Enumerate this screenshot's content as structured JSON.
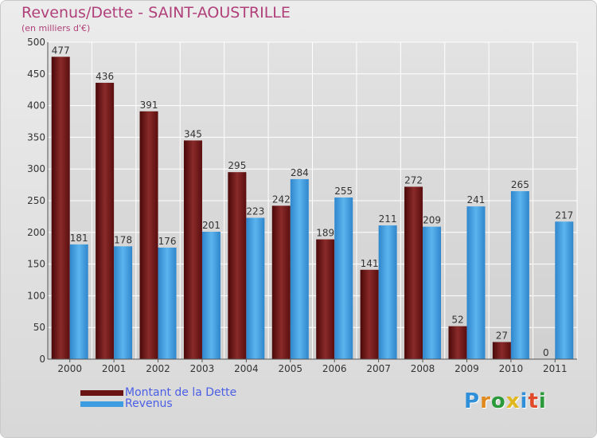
{
  "header": {
    "title": "Revenus/Dette - SAINT-AOUSTRILLE",
    "subtitle": "(en milliers d'€)"
  },
  "legend": [
    {
      "label": "Montant de la Dette",
      "color": "#6b1414"
    },
    {
      "label": "Revenus",
      "color": "#3d9de0"
    }
  ],
  "logo": {
    "letters": [
      {
        "ch": "P",
        "color": "#2f8fd8"
      },
      {
        "ch": "r",
        "color": "#e08a1e"
      },
      {
        "ch": "o",
        "color": "#2a9a3a"
      },
      {
        "ch": "x",
        "color": "#e0b81e"
      },
      {
        "ch": "i",
        "color": "#2f8fd8"
      },
      {
        "ch": "t",
        "color": "#e04a2a"
      },
      {
        "ch": "i",
        "color": "#2a9a3a"
      }
    ]
  },
  "chart_data": {
    "type": "bar",
    "title": "Revenus/Dette - SAINT-AOUSTRILLE",
    "subtitle": "(en milliers d'€)",
    "categories": [
      "2000",
      "2001",
      "2002",
      "2003",
      "2004",
      "2005",
      "2006",
      "2007",
      "2008",
      "2009",
      "2010",
      "2011"
    ],
    "series": [
      {
        "name": "Montant de la Dette",
        "color": "#6b1414",
        "values": [
          477,
          436,
          391,
          345,
          295,
          242,
          189,
          141,
          272,
          52,
          27,
          0
        ]
      },
      {
        "name": "Revenus",
        "color": "#3d9de0",
        "values": [
          181,
          178,
          176,
          201,
          223,
          284,
          255,
          211,
          209,
          241,
          265,
          217
        ]
      }
    ],
    "ylim": [
      0,
      500
    ],
    "yticks": [
      0,
      50,
      100,
      150,
      200,
      250,
      300,
      350,
      400,
      450,
      500
    ],
    "grid": true,
    "legend_position": "bottom-left"
  }
}
